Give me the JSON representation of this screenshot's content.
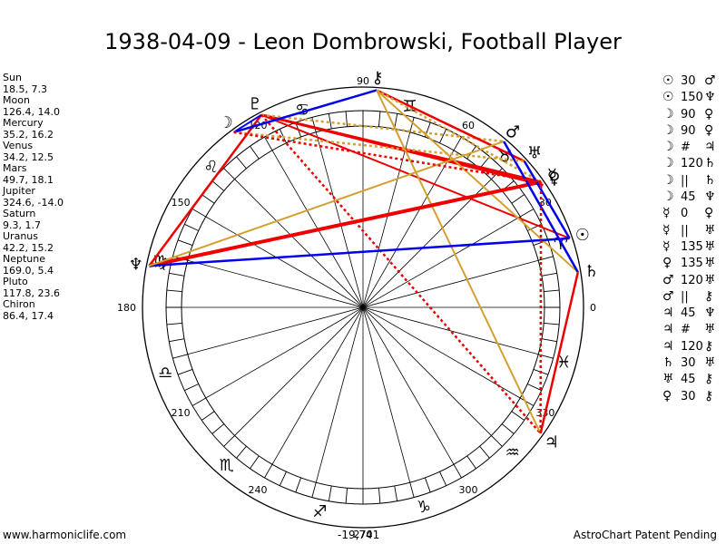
{
  "title": "1938-04-09 - Leon Dombrowski, Football Player",
  "planets": [
    {
      "name": "Sun",
      "coords": "18.5, 7.3"
    },
    {
      "name": "Moon",
      "coords": "126.4, 14.0"
    },
    {
      "name": "Mercury",
      "coords": "35.2, 16.2"
    },
    {
      "name": "Venus",
      "coords": "34.2, 12.5"
    },
    {
      "name": "Mars",
      "coords": "49.7, 18.1"
    },
    {
      "name": "Jupiter",
      "coords": "324.6, -14.0"
    },
    {
      "name": "Saturn",
      "coords": "9.3, 1.7"
    },
    {
      "name": "Uranus",
      "coords": "42.2, 15.2"
    },
    {
      "name": "Neptune",
      "coords": "169.0, 5.4"
    },
    {
      "name": "Pluto",
      "coords": "117.8, 23.6"
    },
    {
      "name": "Chiron",
      "coords": "86.4, 17.4"
    }
  ],
  "aspects": [
    {
      "p1": "☉",
      "aspect": "30",
      "p2": "♂"
    },
    {
      "p1": "☉",
      "aspect": "150",
      "p2": "♆"
    },
    {
      "p1": "☽",
      "aspect": "90",
      "p2": "♀"
    },
    {
      "p1": "☽",
      "aspect": "90",
      "p2": "♀"
    },
    {
      "p1": "☽",
      "aspect": "#",
      "p2": "♃"
    },
    {
      "p1": "☽",
      "aspect": "120",
      "p2": "♄"
    },
    {
      "p1": "☽",
      "aspect": "||",
      "p2": "♄"
    },
    {
      "p1": "☽",
      "aspect": "45",
      "p2": "♆"
    },
    {
      "p1": "☿",
      "aspect": "0",
      "p2": "♀"
    },
    {
      "p1": "☿",
      "aspect": "||",
      "p2": "♅"
    },
    {
      "p1": "☿",
      "aspect": "135",
      "p2": "♅"
    },
    {
      "p1": "♀",
      "aspect": "135",
      "p2": "♅"
    },
    {
      "p1": "♂",
      "aspect": "120",
      "p2": "♅"
    },
    {
      "p1": "♂",
      "aspect": "||",
      "p2": "⚷"
    },
    {
      "p1": "♃",
      "aspect": "45",
      "p2": "♆"
    },
    {
      "p1": "♃",
      "aspect": "#",
      "p2": "♅"
    },
    {
      "p1": "♃",
      "aspect": "120",
      "p2": "⚷"
    },
    {
      "p1": "♄",
      "aspect": "30",
      "p2": "♅"
    },
    {
      "p1": "♅",
      "aspect": "45",
      "p2": "⚷"
    },
    {
      "p1": "♀",
      "aspect": "30",
      "p2": "⚷"
    }
  ],
  "wheel": {
    "degree_labels": [
      "0",
      "30",
      "60",
      "90",
      "120",
      "150",
      "180",
      "210",
      "240",
      "270",
      "300",
      "330"
    ],
    "center_value": "-19,741",
    "sign_glyphs": [
      "♈",
      "♉",
      "♊",
      "♋",
      "♌",
      "♍",
      "♎",
      "♏",
      "♐",
      "♑",
      "♒",
      "♓"
    ],
    "planet_glyphs": [
      {
        "glyph": "☉",
        "icon": "sun-icon",
        "lon": 18.5,
        "lat": 7.3
      },
      {
        "glyph": "☽",
        "icon": "moon-icon",
        "lon": 126.4,
        "lat": 14.0
      },
      {
        "glyph": "☿",
        "icon": "mercury-icon",
        "lon": 35.2,
        "lat": 16.2
      },
      {
        "glyph": "♀",
        "icon": "venus-icon",
        "lon": 34.2,
        "lat": 12.5
      },
      {
        "glyph": "♂",
        "icon": "mars-icon",
        "lon": 49.7,
        "lat": 18.1
      },
      {
        "glyph": "♃",
        "icon": "jupiter-icon",
        "lon": 324.6,
        "lat": -14.0
      },
      {
        "glyph": "♄",
        "icon": "saturn-icon",
        "lon": 9.3,
        "lat": 1.7
      },
      {
        "glyph": "♅",
        "icon": "uranus-icon",
        "lon": 42.2,
        "lat": 15.2
      },
      {
        "glyph": "♆",
        "icon": "neptune-icon",
        "lon": 169.0,
        "lat": 5.4
      },
      {
        "glyph": "♇",
        "icon": "pluto-icon",
        "lon": 117.8,
        "lat": 23.6
      },
      {
        "glyph": "⚷",
        "icon": "chiron-icon",
        "lon": 86.4,
        "lat": 17.4
      }
    ],
    "colors": {
      "red": "#ee0000",
      "blue": "#0000ee",
      "gold": "#d4a030",
      "purple": "#660099"
    }
  },
  "footer": {
    "left": "www.harmoniclife.com",
    "center": "-19,741",
    "right": "AstroChart Patent Pending"
  }
}
